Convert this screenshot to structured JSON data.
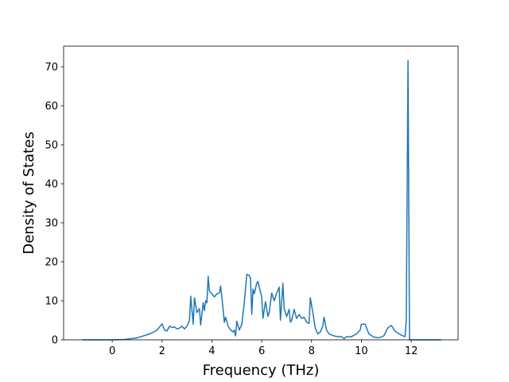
{
  "chart_data": {
    "type": "line",
    "xlabel": "Frequency (THz)",
    "ylabel": "Density of States",
    "color": "#1f77b4",
    "xlim": [
      -1.95,
      13.88
    ],
    "ylim": [
      0,
      75.3
    ],
    "xticks": [
      0,
      2,
      4,
      6,
      8,
      10,
      12
    ],
    "yticks": [
      0,
      10,
      20,
      30,
      40,
      50,
      60,
      70
    ],
    "x": [
      -1.2,
      0,
      0.5,
      1,
      1.5,
      1.8,
      2.0,
      2.1,
      2.2,
      2.3,
      2.4,
      2.5,
      2.6,
      2.7,
      2.8,
      2.9,
      3.0,
      3.1,
      3.15,
      3.25,
      3.3,
      3.4,
      3.5,
      3.55,
      3.65,
      3.7,
      3.75,
      3.8,
      3.85,
      3.9,
      4.0,
      4.1,
      4.2,
      4.3,
      4.35,
      4.4,
      4.5,
      4.55,
      4.65,
      4.75,
      4.85,
      4.9,
      4.95,
      5.0,
      5.1,
      5.2,
      5.3,
      5.4,
      5.5,
      5.55,
      5.6,
      5.65,
      5.7,
      5.8,
      5.85,
      5.9,
      6.0,
      6.05,
      6.15,
      6.25,
      6.3,
      6.4,
      6.5,
      6.6,
      6.7,
      6.75,
      6.85,
      6.9,
      7.0,
      7.1,
      7.15,
      7.2,
      7.3,
      7.4,
      7.5,
      7.6,
      7.7,
      7.8,
      7.9,
      7.95,
      8.05,
      8.15,
      8.25,
      8.35,
      8.45,
      8.5,
      8.6,
      8.7,
      8.9,
      9.1,
      9.2,
      9.3,
      9.4,
      9.6,
      9.8,
      9.95,
      10.0,
      10.15,
      10.3,
      10.5,
      10.7,
      10.9,
      11.05,
      11.2,
      11.35,
      11.6,
      11.75,
      11.8,
      11.87,
      11.93,
      12.2,
      13.2
    ],
    "values": [
      0,
      0,
      0.1,
      0.5,
      1.5,
      2.5,
      4.1,
      2.5,
      2.3,
      3.5,
      3.2,
      3.3,
      2.8,
      3.0,
      3.5,
      2.8,
      3.5,
      5.0,
      11.2,
      4.0,
      10.8,
      7.0,
      8.0,
      3.8,
      9.5,
      7.5,
      10.0,
      9.5,
      16.3,
      12.5,
      11.8,
      11.0,
      11.8,
      12.0,
      13.8,
      11.0,
      4.5,
      5.8,
      3.5,
      2.5,
      2.0,
      2.5,
      1.0,
      4.8,
      2.5,
      4.0,
      9.5,
      16.8,
      16.5,
      15.8,
      6.5,
      13.0,
      11.8,
      14.5,
      15.0,
      13.5,
      11.0,
      5.5,
      9.8,
      6.0,
      7.0,
      12.0,
      10.0,
      12.0,
      13.5,
      5.0,
      14.5,
      8.0,
      6.0,
      7.8,
      4.5,
      5.0,
      7.8,
      5.5,
      6.5,
      5.5,
      5.8,
      4.5,
      4.2,
      10.8,
      7.0,
      3.0,
      1.5,
      2.0,
      3.5,
      5.8,
      2.5,
      1.5,
      1.0,
      0.8,
      0.8,
      0.3,
      0.8,
      0.8,
      1.5,
      2.5,
      4.0,
      4.0,
      1.5,
      0.7,
      0.5,
      1.0,
      3.0,
      3.7,
      2.2,
      1.2,
      0.8,
      5.0,
      71.6,
      0,
      0,
      0
    ]
  }
}
